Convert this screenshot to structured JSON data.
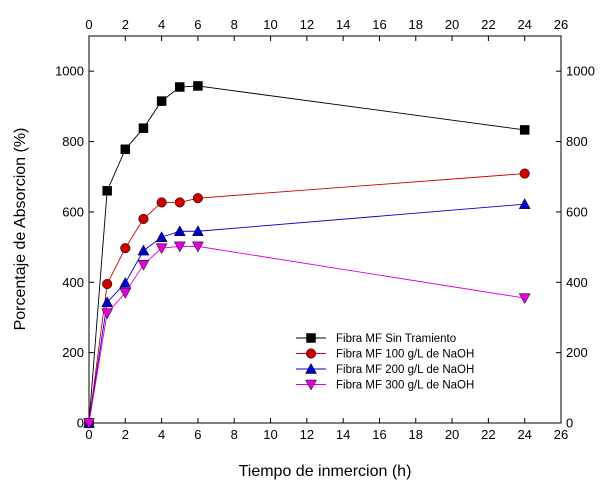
{
  "chart_data": {
    "type": "line",
    "xlabel": "Tiempo de inmercion (h)",
    "ylabel": "Porcentaje de Absorcion (%)",
    "xlim": [
      0,
      26
    ],
    "ylim": [
      0,
      1100
    ],
    "x_ticks": [
      0,
      2,
      4,
      6,
      8,
      10,
      12,
      14,
      16,
      18,
      20,
      22,
      24,
      26
    ],
    "y_ticks": [
      0,
      200,
      400,
      600,
      800,
      1000
    ],
    "x_tick_labels": [
      "0",
      "2",
      "4",
      "6",
      "8",
      "10",
      "12",
      "14",
      "16",
      "18",
      "20",
      "22",
      "24",
      "26"
    ],
    "y_tick_labels": [
      "0",
      "200",
      "400",
      "600",
      "800",
      "1000"
    ],
    "mirror_axes": true,
    "grid": false,
    "legend_position": "bottom-right",
    "x": [
      0,
      1,
      2,
      3,
      4,
      5,
      6,
      24
    ],
    "series": [
      {
        "name": "Fibra MF Sin Tramiento",
        "color": "#000000",
        "marker": "square",
        "values": [
          0,
          660,
          778,
          838,
          915,
          955,
          958,
          833
        ]
      },
      {
        "name": "Fibra MF 100 g/L de NaOH",
        "color": "#cc0000",
        "marker": "circle",
        "values": [
          0,
          395,
          497,
          580,
          627,
          627,
          639,
          709
        ]
      },
      {
        "name": "Fibra MF 200 g/L de NaOH",
        "color": "#0000cc",
        "marker": "triangle-up",
        "values": [
          0,
          343,
          398,
          490,
          528,
          545,
          545,
          622
        ]
      },
      {
        "name": "Fibra MF 300 g/L de NaOH",
        "color": "#e000e0",
        "marker": "triangle-down",
        "values": [
          0,
          312,
          370,
          450,
          497,
          502,
          502,
          355
        ]
      }
    ]
  }
}
